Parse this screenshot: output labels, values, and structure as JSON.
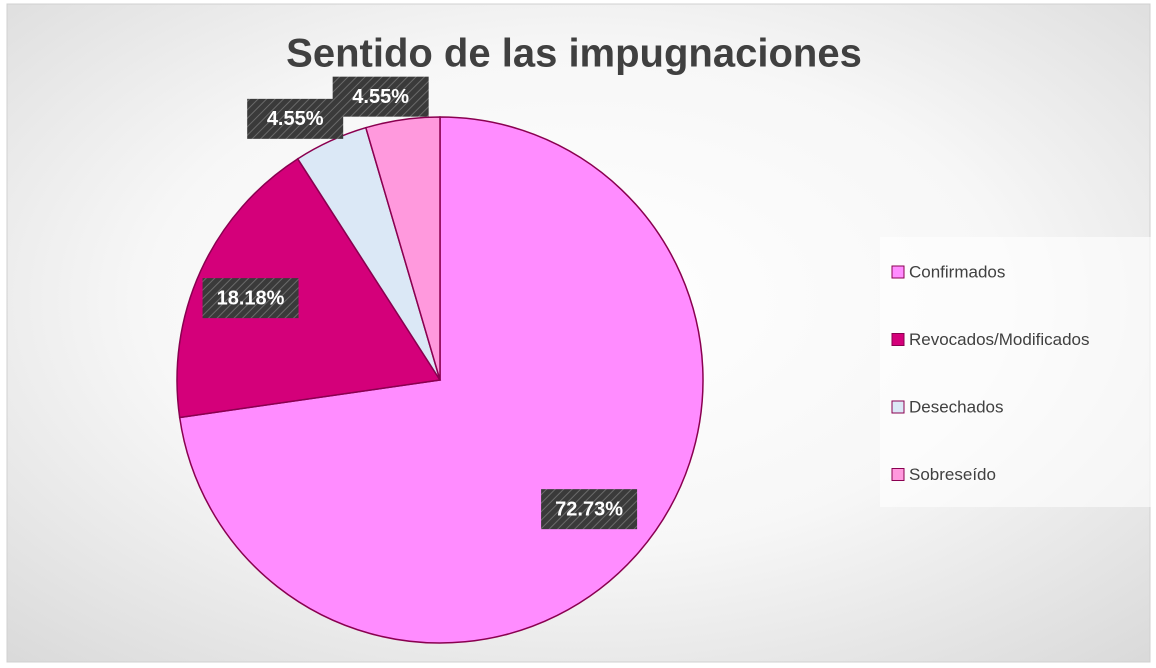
{
  "chart_data": {
    "type": "pie",
    "title": "Sentido de las impugnaciones",
    "categories": [
      "Confirmados",
      "Revocados/Modificados",
      "Desechados",
      "Sobreseído"
    ],
    "values": [
      72.73,
      18.18,
      4.55,
      4.55
    ],
    "value_labels": [
      "72.73%",
      "18.18%",
      "4.55%",
      "4.55%"
    ],
    "colors": [
      "#ff8cff",
      "#d4007a",
      "#dbe8f6",
      "#ff99dd"
    ],
    "legend": "right"
  }
}
